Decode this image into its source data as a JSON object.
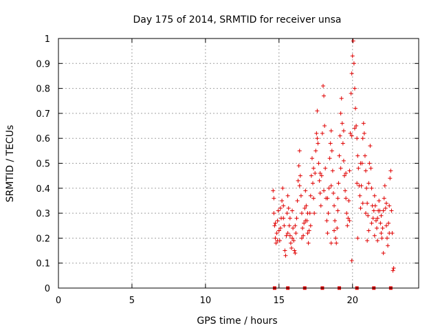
{
  "chart_data": {
    "type": "scatter",
    "title": "Day 175 of 2014, SRMTID for receiver unsa",
    "xlabel": "GPS time / hours",
    "ylabel": "SRMTID / TECUs",
    "xlim": [
      0,
      24.5
    ],
    "ylim": [
      0,
      1
    ],
    "x_ticks": [
      0,
      5,
      10,
      15,
      20
    ],
    "x_tick_labels": [
      "0",
      "5",
      "10",
      "15",
      "20"
    ],
    "y_ticks": [
      0,
      0.1,
      0.2,
      0.3,
      0.4,
      0.5,
      0.6,
      0.7,
      0.8,
      0.9,
      1
    ],
    "y_tick_labels": [
      "0",
      "0.1",
      "0.2",
      "0.3",
      "0.4",
      "0.5",
      "0.6",
      "0.7",
      "0.8",
      "0.9",
      "1"
    ],
    "grid": true,
    "series": [
      {
        "name": "SRMTID",
        "color": "#e00000",
        "marker": "plus",
        "points": [
          [
            14.6,
            0.39
          ],
          [
            14.65,
            0.3
          ],
          [
            14.7,
            0.25
          ],
          [
            14.75,
            0.2
          ],
          [
            14.8,
            0.18
          ],
          [
            14.85,
            0.22
          ],
          [
            14.9,
            0.27
          ],
          [
            14.95,
            0.31
          ],
          [
            15.0,
            0.23
          ],
          [
            15.05,
            0.19
          ],
          [
            15.1,
            0.24
          ],
          [
            15.15,
            0.28
          ],
          [
            15.2,
            0.35
          ],
          [
            15.25,
            0.4
          ],
          [
            15.3,
            0.33
          ],
          [
            15.35,
            0.25
          ],
          [
            15.4,
            0.15
          ],
          [
            15.45,
            0.13
          ],
          [
            15.5,
            0.21
          ],
          [
            15.55,
            0.3
          ],
          [
            15.6,
            0.37
          ],
          [
            15.65,
            0.32
          ],
          [
            15.7,
            0.25
          ],
          [
            15.75,
            0.21
          ],
          [
            15.8,
            0.18
          ],
          [
            15.85,
            0.16
          ],
          [
            15.9,
            0.2
          ],
          [
            15.95,
            0.24
          ],
          [
            16.0,
            0.19
          ],
          [
            16.05,
            0.15
          ],
          [
            16.1,
            0.14
          ],
          [
            16.15,
            0.22
          ],
          [
            16.2,
            0.28
          ],
          [
            16.25,
            0.35
          ],
          [
            16.3,
            0.43
          ],
          [
            16.35,
            0.49
          ],
          [
            16.4,
            0.55
          ],
          [
            16.45,
            0.45
          ],
          [
            16.5,
            0.37
          ],
          [
            16.55,
            0.3
          ],
          [
            16.6,
            0.24
          ],
          [
            16.65,
            0.21
          ],
          [
            16.7,
            0.26
          ],
          [
            16.75,
            0.32
          ],
          [
            16.8,
            0.39
          ],
          [
            16.85,
            0.33
          ],
          [
            16.9,
            0.27
          ],
          [
            16.95,
            0.22
          ],
          [
            17.0,
            0.18
          ],
          [
            17.05,
            0.23
          ],
          [
            17.1,
            0.3
          ],
          [
            17.15,
            0.37
          ],
          [
            17.2,
            0.45
          ],
          [
            17.25,
            0.52
          ],
          [
            17.3,
            0.42
          ],
          [
            17.35,
            0.36
          ],
          [
            17.4,
            0.3
          ],
          [
            17.45,
            0.46
          ],
          [
            17.5,
            0.55
          ],
          [
            17.55,
            0.62
          ],
          [
            17.6,
            0.71
          ],
          [
            17.65,
            0.58
          ],
          [
            17.7,
            0.5
          ],
          [
            17.75,
            0.43
          ],
          [
            17.8,
            0.38
          ],
          [
            17.85,
            0.33
          ],
          [
            17.9,
            0.45
          ],
          [
            17.95,
            0.62
          ],
          [
            18.0,
            0.81
          ],
          [
            18.05,
            0.77
          ],
          [
            18.1,
            0.65
          ],
          [
            18.15,
            0.48
          ],
          [
            18.2,
            0.36
          ],
          [
            18.25,
            0.27
          ],
          [
            18.3,
            0.22
          ],
          [
            18.35,
            0.3
          ],
          [
            18.4,
            0.4
          ],
          [
            18.45,
            0.52
          ],
          [
            18.5,
            0.58
          ],
          [
            18.55,
            0.63
          ],
          [
            18.6,
            0.55
          ],
          [
            18.65,
            0.47
          ],
          [
            18.7,
            0.38
          ],
          [
            18.75,
            0.33
          ],
          [
            18.8,
            0.27
          ],
          [
            18.85,
            0.2
          ],
          [
            18.9,
            0.18
          ],
          [
            18.95,
            0.24
          ],
          [
            19.0,
            0.31
          ],
          [
            19.05,
            0.42
          ],
          [
            19.1,
            0.53
          ],
          [
            19.15,
            0.61
          ],
          [
            19.2,
            0.7
          ],
          [
            19.25,
            0.76
          ],
          [
            19.3,
            0.66
          ],
          [
            19.35,
            0.58
          ],
          [
            19.4,
            0.51
          ],
          [
            19.45,
            0.45
          ],
          [
            19.5,
            0.39
          ],
          [
            19.55,
            0.36
          ],
          [
            19.6,
            0.3
          ],
          [
            19.65,
            0.25
          ],
          [
            19.7,
            0.28
          ],
          [
            19.75,
            0.35
          ],
          [
            19.8,
            0.47
          ],
          [
            19.85,
            0.62
          ],
          [
            19.9,
            0.78
          ],
          [
            19.95,
            0.86
          ],
          [
            20.0,
            0.93
          ],
          [
            20.05,
            0.99
          ],
          [
            20.1,
            0.9
          ],
          [
            20.15,
            0.8
          ],
          [
            20.2,
            0.72
          ],
          [
            20.25,
            0.65
          ],
          [
            20.3,
            0.6
          ],
          [
            20.35,
            0.53
          ],
          [
            20.4,
            0.48
          ],
          [
            20.45,
            0.41
          ],
          [
            20.5,
            0.37
          ],
          [
            20.55,
            0.32
          ],
          [
            20.6,
            0.41
          ],
          [
            20.65,
            0.5
          ],
          [
            20.7,
            0.6
          ],
          [
            20.75,
            0.66
          ],
          [
            20.8,
            0.62
          ],
          [
            20.85,
            0.53
          ],
          [
            20.9,
            0.47
          ],
          [
            20.95,
            0.4
          ],
          [
            21.0,
            0.34
          ],
          [
            21.05,
            0.29
          ],
          [
            21.1,
            0.42
          ],
          [
            21.15,
            0.5
          ],
          [
            21.2,
            0.57
          ],
          [
            21.25,
            0.48
          ],
          [
            21.3,
            0.4
          ],
          [
            21.35,
            0.33
          ],
          [
            21.4,
            0.28
          ],
          [
            21.45,
            0.31
          ],
          [
            21.5,
            0.37
          ],
          [
            21.55,
            0.33
          ],
          [
            21.6,
            0.27
          ],
          [
            21.65,
            0.24
          ],
          [
            21.7,
            0.28
          ],
          [
            21.75,
            0.31
          ],
          [
            21.8,
            0.35
          ],
          [
            21.85,
            0.31
          ],
          [
            21.9,
            0.26
          ],
          [
            21.95,
            0.22
          ],
          [
            22.0,
            0.2
          ],
          [
            22.05,
            0.24
          ],
          [
            22.1,
            0.31
          ],
          [
            22.15,
            0.36
          ],
          [
            22.2,
            0.41
          ],
          [
            22.25,
            0.32
          ],
          [
            22.3,
            0.25
          ],
          [
            22.35,
            0.2
          ],
          [
            22.4,
            0.17
          ],
          [
            22.45,
            0.26
          ],
          [
            22.5,
            0.33
          ],
          [
            22.55,
            0.44
          ],
          [
            22.6,
            0.47
          ],
          [
            22.65,
            0.31
          ],
          [
            22.7,
            0.22
          ],
          [
            22.75,
            0.07
          ],
          [
            22.8,
            0.08
          ],
          [
            14.65,
            0.36
          ],
          [
            14.75,
            0.26
          ],
          [
            14.9,
            0.19
          ],
          [
            15.1,
            0.32
          ],
          [
            15.3,
            0.28
          ],
          [
            15.6,
            0.22
          ],
          [
            15.75,
            0.28
          ],
          [
            15.9,
            0.31
          ],
          [
            16.1,
            0.25
          ],
          [
            16.4,
            0.41
          ],
          [
            16.55,
            0.2
          ],
          [
            16.8,
            0.27
          ],
          [
            16.95,
            0.3
          ],
          [
            17.15,
            0.25
          ],
          [
            17.35,
            0.48
          ],
          [
            17.6,
            0.6
          ],
          [
            17.8,
            0.46
          ],
          [
            18.05,
            0.39
          ],
          [
            18.3,
            0.36
          ],
          [
            18.55,
            0.41
          ],
          [
            18.75,
            0.23
          ],
          [
            19.0,
            0.36
          ],
          [
            19.2,
            0.48
          ],
          [
            19.4,
            0.63
          ],
          [
            19.55,
            0.46
          ],
          [
            19.8,
            0.27
          ],
          [
            19.95,
            0.61
          ],
          [
            20.15,
            0.64
          ],
          [
            20.3,
            0.42
          ],
          [
            20.55,
            0.5
          ],
          [
            20.7,
            0.34
          ],
          [
            20.9,
            0.3
          ],
          [
            21.1,
            0.23
          ],
          [
            21.3,
            0.26
          ],
          [
            21.5,
            0.21
          ],
          [
            21.7,
            0.19
          ],
          [
            21.95,
            0.29
          ],
          [
            22.1,
            0.14
          ],
          [
            22.3,
            0.34
          ],
          [
            22.5,
            0.22
          ],
          [
            19.95,
            0.11
          ],
          [
            21.0,
            0.19
          ],
          [
            20.35,
            0.2
          ],
          [
            18.55,
            0.18
          ]
        ],
        "zero_points": [
          14.7,
          15.6,
          16.75,
          17.95,
          19.1,
          20.3,
          21.45,
          22.6
        ]
      }
    ]
  }
}
